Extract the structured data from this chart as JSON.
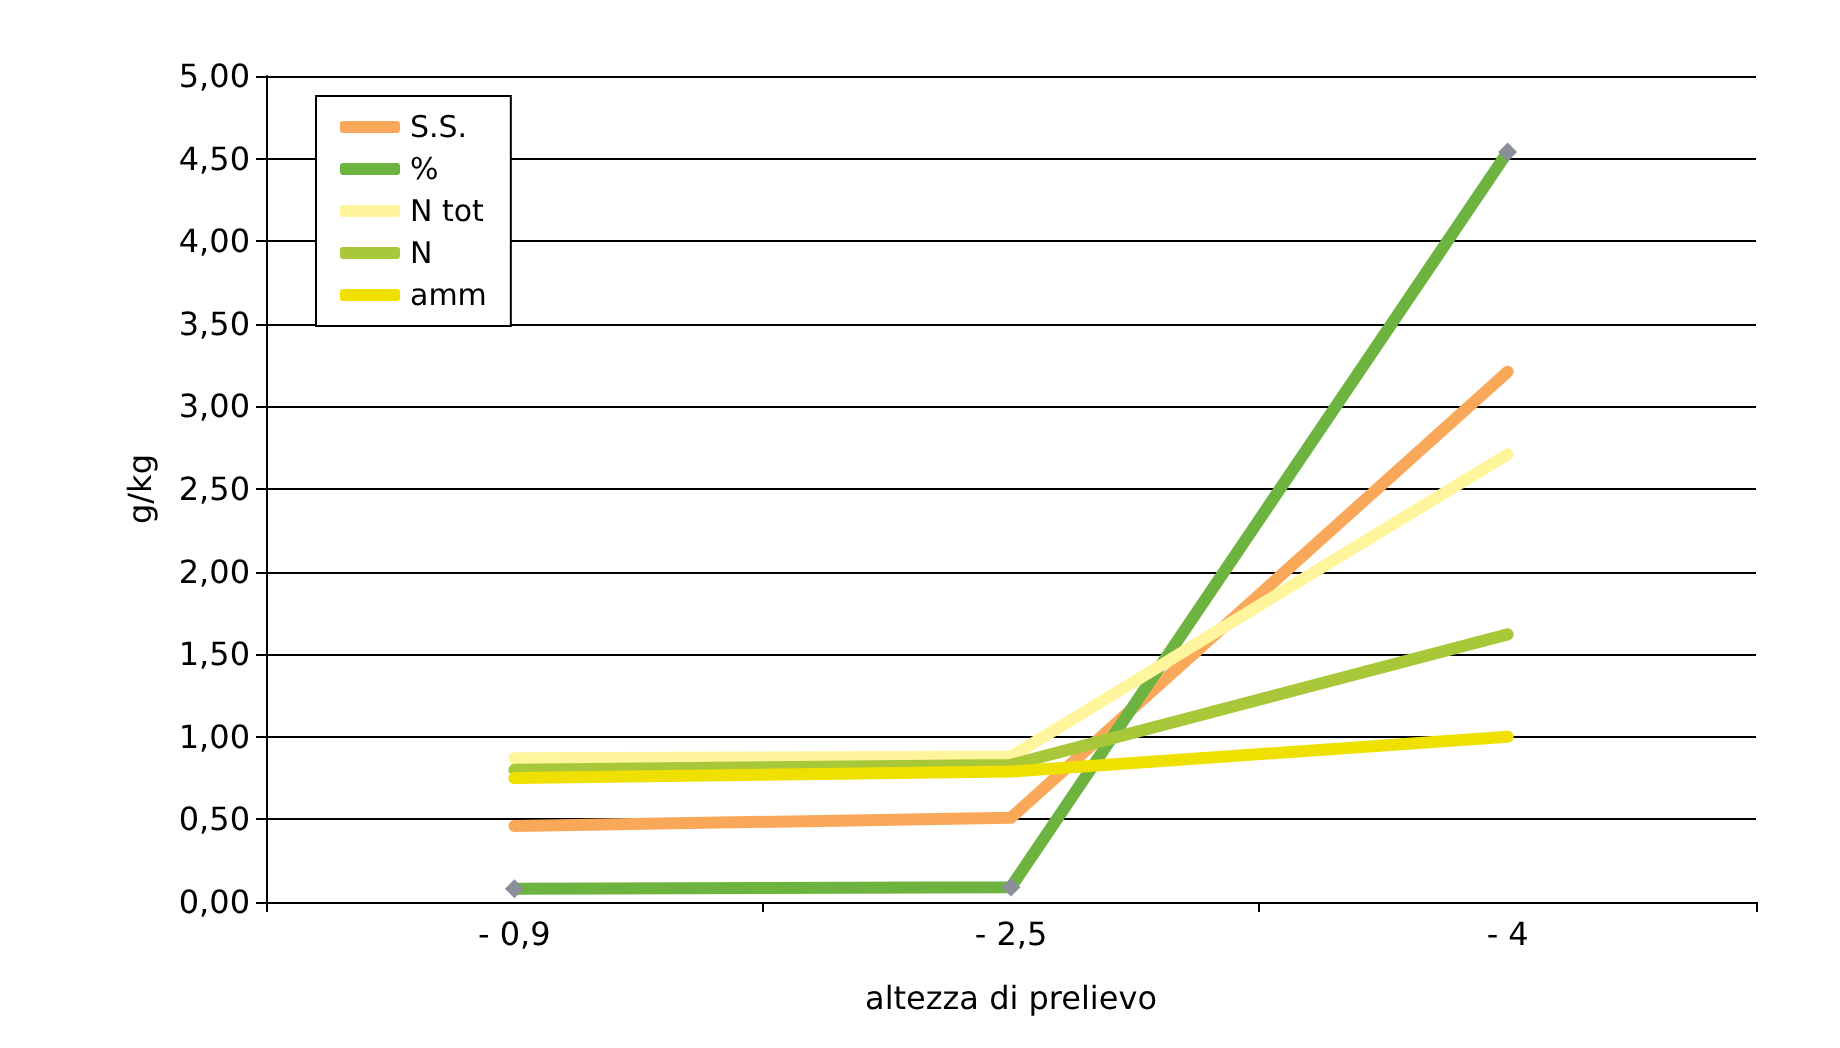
{
  "chart_data": {
    "type": "line",
    "xlabel": "altezza di prelievo",
    "ylabel": "g/kg",
    "categories": [
      "- 0,9",
      "- 2,5",
      "- 4"
    ],
    "series": [
      {
        "name": "S.S.",
        "color": "#f9a85a",
        "values": [
          0.46,
          0.51,
          3.21
        ]
      },
      {
        "name": "%",
        "color": "#6db33f",
        "values": [
          0.08,
          0.09,
          4.54
        ],
        "marker": "diamond"
      },
      {
        "name": "N tot",
        "color": "#fff59d",
        "values": [
          0.87,
          0.88,
          2.71
        ]
      },
      {
        "name": "N",
        "color": "#a8c83a",
        "values": [
          0.8,
          0.83,
          1.62
        ]
      },
      {
        "name": "amm",
        "color": "#f0e000",
        "values": [
          0.75,
          0.79,
          1.0
        ]
      }
    ],
    "ylim": [
      0,
      5
    ],
    "yticks": [
      {
        "value": 0,
        "label": "0,00"
      },
      {
        "value": 0.5,
        "label": "0,50"
      },
      {
        "value": 1,
        "label": "1,00"
      },
      {
        "value": 1.5,
        "label": "1,50"
      },
      {
        "value": 2,
        "label": "2,00"
      },
      {
        "value": 2.5,
        "label": "2,50"
      },
      {
        "value": 3,
        "label": "3,00"
      },
      {
        "value": 3.5,
        "label": "3,50"
      },
      {
        "value": 4,
        "label": "4,00"
      },
      {
        "value": 4.5,
        "label": "4,50"
      },
      {
        "value": 5,
        "label": "5,00"
      }
    ],
    "grid": "y",
    "legend": "top left",
    "marker": "none",
    "line_style": "solid"
  }
}
